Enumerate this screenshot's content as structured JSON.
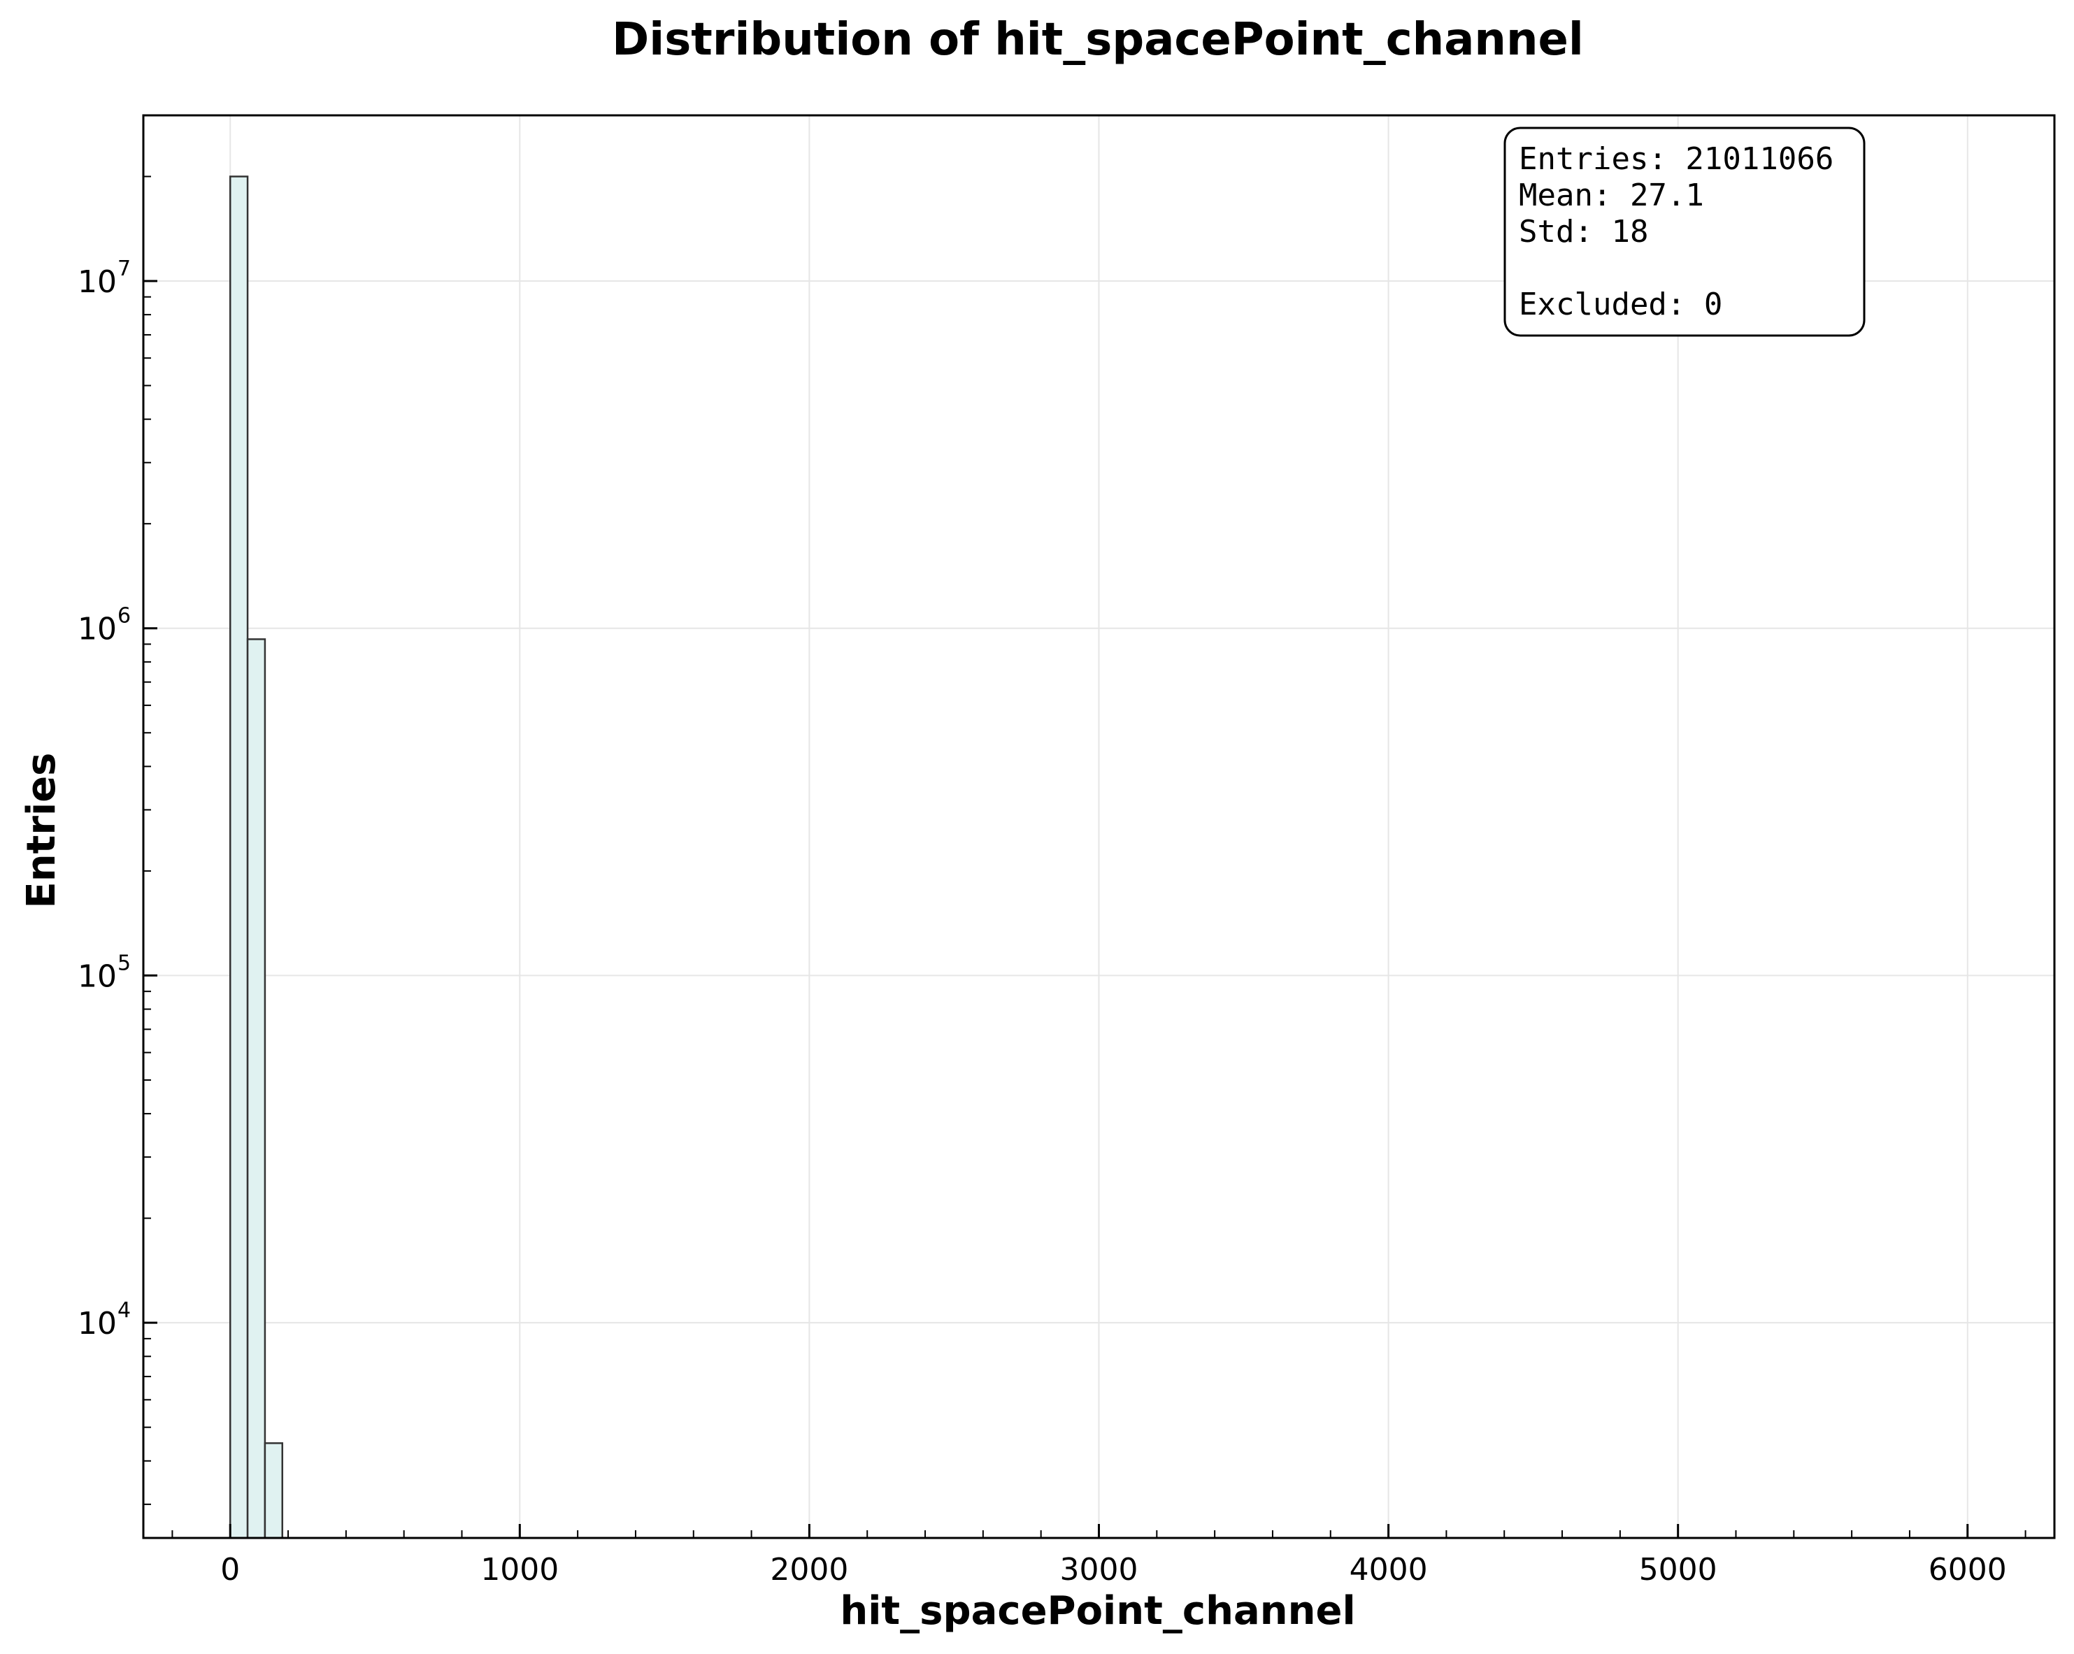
{
  "chart_data": {
    "type": "bar",
    "title": "Distribution of hit_spacePoint_channel",
    "xlabel": "hit_spacePoint_channel",
    "ylabel": "Entries",
    "xlim": [
      -300,
      6300
    ],
    "ylim": [
      2400,
      30000000
    ],
    "yscale": "log",
    "grid": true,
    "xticks": [
      0,
      1000,
      2000,
      3000,
      4000,
      5000,
      6000
    ],
    "xtick_labels": [
      "0",
      "1000",
      "2000",
      "3000",
      "4000",
      "5000",
      "6000"
    ],
    "yticks": [
      10000,
      100000,
      1000000,
      10000000
    ],
    "ytick_labels": [
      {
        "base": "10",
        "exp": "4"
      },
      {
        "base": "10",
        "exp": "5"
      },
      {
        "base": "10",
        "exp": "6"
      },
      {
        "base": "10",
        "exp": "7"
      }
    ],
    "bins": [
      {
        "x0": 0,
        "x1": 60,
        "value": 20000000
      },
      {
        "x0": 60,
        "x1": 120,
        "value": 930000
      },
      {
        "x0": 120,
        "x1": 180,
        "value": 4500
      }
    ],
    "bar_fill": "#e0f2f1",
    "bar_edge": "#333333",
    "stats": {
      "entries": "Entries: 21011066",
      "mean": "Mean: 27.1",
      "std": "Std: 18",
      "excluded": "Excluded: 0"
    },
    "stats_box_position": "top-right"
  }
}
